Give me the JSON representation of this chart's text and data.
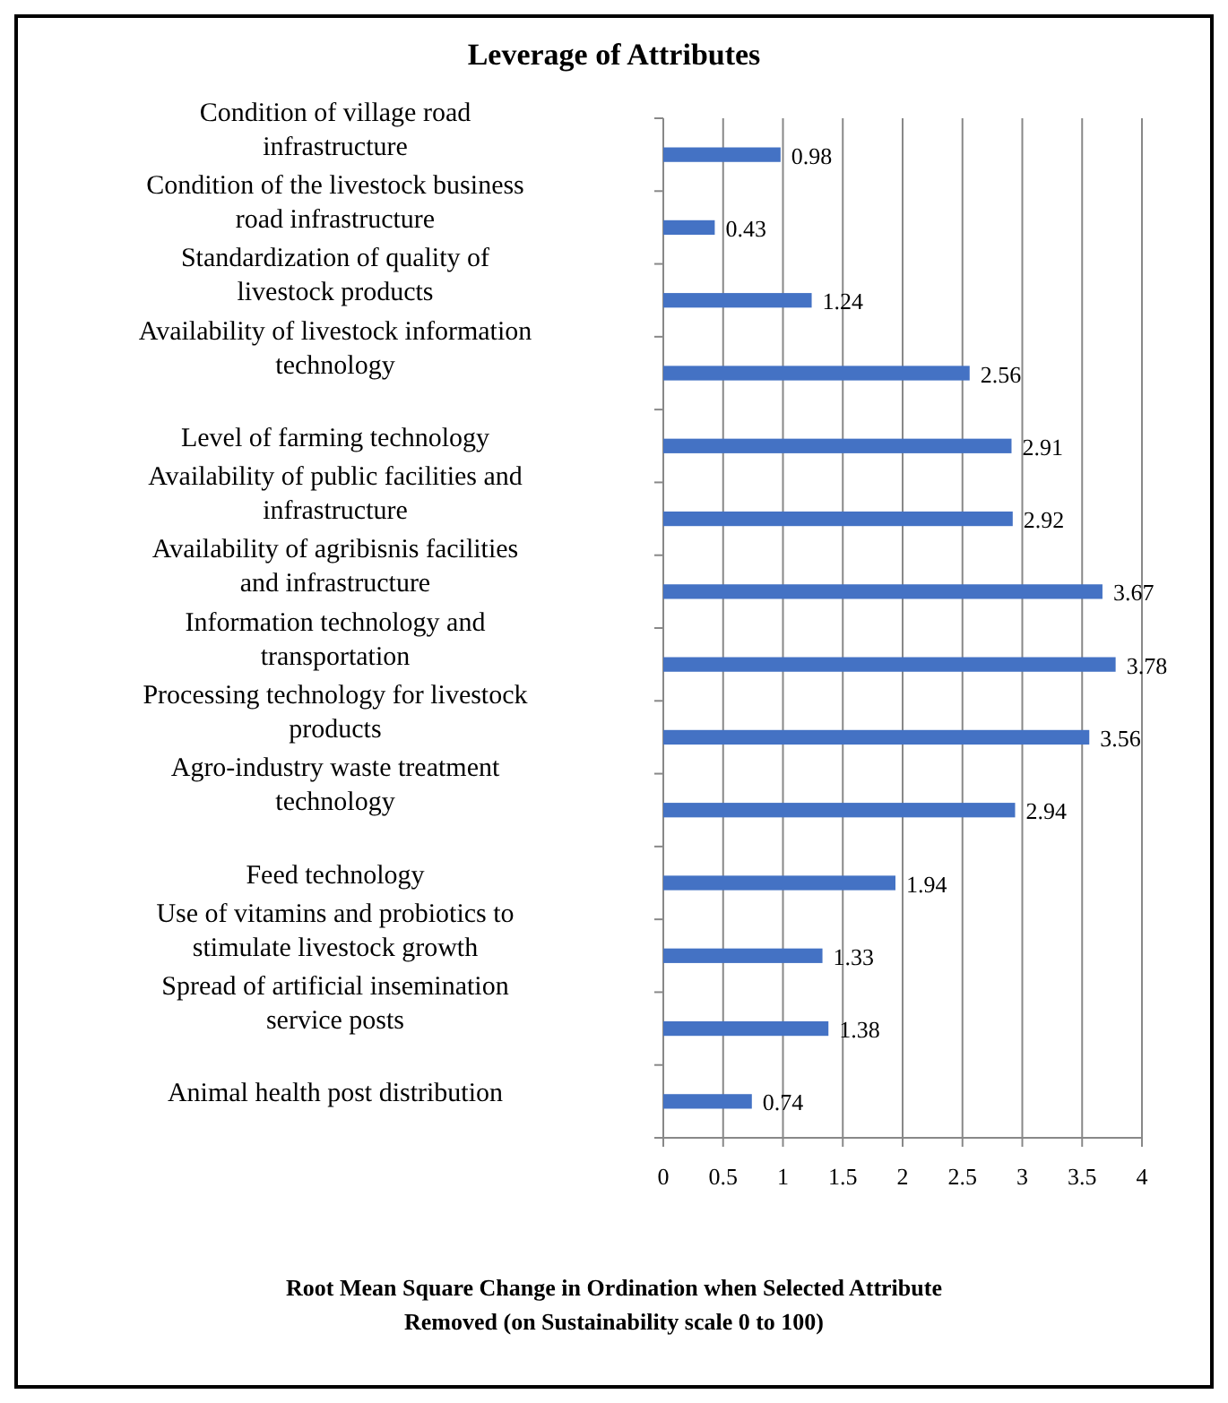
{
  "chart_data": {
    "type": "bar",
    "orientation": "horizontal",
    "title": "Leverage of Attributes",
    "xlabel": "Root Mean Square Change in Ordination when Selected Attribute Removed (on Sustainability  scale 0 to 100)",
    "categories": [
      "Condition of village road infrastructure",
      "Condition of the livestock business road infrastructure",
      "Standardization of quality of livestock products",
      "Availability of livestock information technology",
      "Level of farming technology",
      "Availability of public facilities and infrastructure",
      "Availability of agribisnis facilities and infrastructure",
      "Information technology and transportation",
      "Processing technology for livestock products",
      "Agro-industry waste treatment technology",
      "Feed technology",
      "Use of vitamins and probiotics to stimulate livestock growth",
      "Spread of artificial insemination service posts",
      "Animal health post distribution"
    ],
    "values": [
      0.98,
      0.43,
      1.24,
      2.56,
      2.91,
      2.92,
      3.67,
      3.78,
      3.56,
      2.94,
      1.94,
      1.33,
      1.38,
      0.74
    ],
    "color": "#4472c4",
    "xlim": [
      0,
      4
    ],
    "xticks": [
      0,
      0.5,
      1,
      1.5,
      2,
      2.5,
      3,
      3.5,
      4
    ],
    "grid": "x",
    "data_labels": true
  }
}
